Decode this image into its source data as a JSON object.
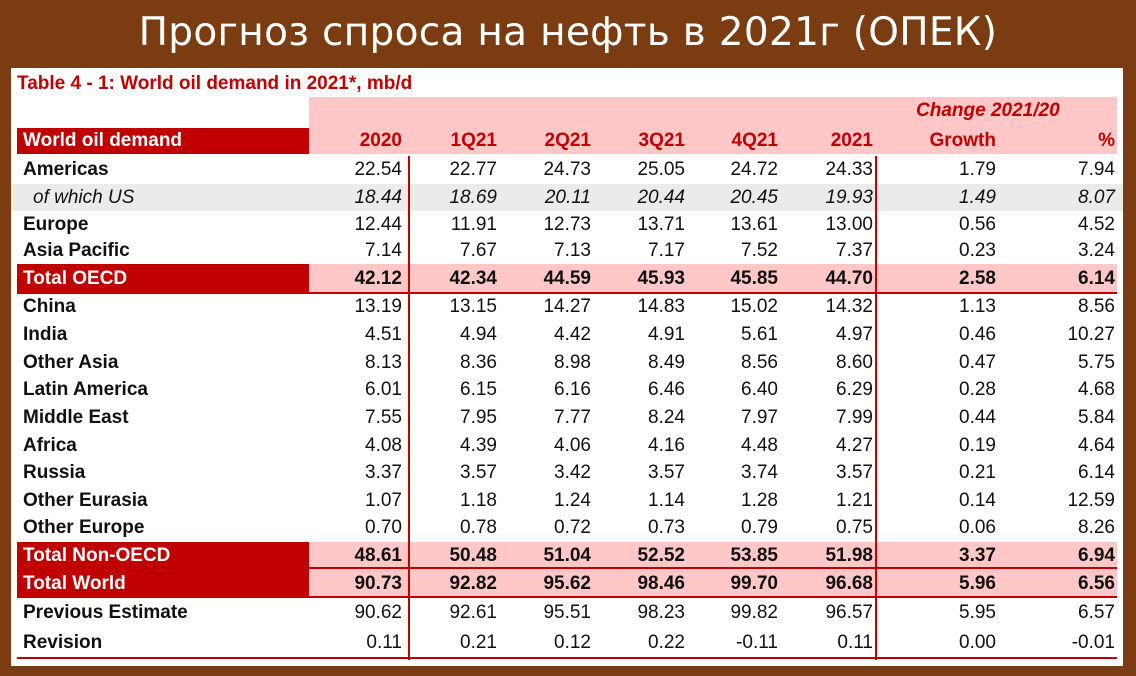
{
  "banner_title": "Прогноз спроса на нефть в 2021г (ОПЕК)",
  "table": {
    "caption": "Table 4 - 1: World oil demand in 2021*, mb/d",
    "row_header": "World oil demand",
    "change_header": "Change 2021/20",
    "columns": [
      "2020",
      "1Q21",
      "2Q21",
      "3Q21",
      "4Q21",
      "2021",
      "Growth",
      "%"
    ],
    "rows": [
      {
        "label": "Americas",
        "values": [
          "22.54",
          "22.77",
          "24.73",
          "25.05",
          "24.72",
          "24.33",
          "1.79",
          "7.94"
        ]
      },
      {
        "label": "of which US",
        "values": [
          "18.44",
          "18.69",
          "20.11",
          "20.44",
          "20.45",
          "19.93",
          "1.49",
          "8.07"
        ]
      },
      {
        "label": "Europe",
        "values": [
          "12.44",
          "11.91",
          "12.73",
          "13.71",
          "13.61",
          "13.00",
          "0.56",
          "4.52"
        ]
      },
      {
        "label": "Asia Pacific",
        "values": [
          "7.14",
          "7.67",
          "7.13",
          "7.17",
          "7.52",
          "7.37",
          "0.23",
          "3.24"
        ]
      },
      {
        "label": "Total OECD",
        "values": [
          "42.12",
          "42.34",
          "44.59",
          "45.93",
          "45.85",
          "44.70",
          "2.58",
          "6.14"
        ]
      },
      {
        "label": "China",
        "values": [
          "13.19",
          "13.15",
          "14.27",
          "14.83",
          "15.02",
          "14.32",
          "1.13",
          "8.56"
        ]
      },
      {
        "label": "India",
        "values": [
          "4.51",
          "4.94",
          "4.42",
          "4.91",
          "5.61",
          "4.97",
          "0.46",
          "10.27"
        ]
      },
      {
        "label": "Other Asia",
        "values": [
          "8.13",
          "8.36",
          "8.98",
          "8.49",
          "8.56",
          "8.60",
          "0.47",
          "5.75"
        ]
      },
      {
        "label": "Latin America",
        "values": [
          "6.01",
          "6.15",
          "6.16",
          "6.46",
          "6.40",
          "6.29",
          "0.28",
          "4.68"
        ]
      },
      {
        "label": "Middle East",
        "values": [
          "7.55",
          "7.95",
          "7.77",
          "8.24",
          "7.97",
          "7.99",
          "0.44",
          "5.84"
        ]
      },
      {
        "label": "Africa",
        "values": [
          "4.08",
          "4.39",
          "4.06",
          "4.16",
          "4.48",
          "4.27",
          "0.19",
          "4.64"
        ]
      },
      {
        "label": "Russia",
        "values": [
          "3.37",
          "3.57",
          "3.42",
          "3.57",
          "3.74",
          "3.57",
          "0.21",
          "6.14"
        ]
      },
      {
        "label": "Other Eurasia",
        "values": [
          "1.07",
          "1.18",
          "1.24",
          "1.14",
          "1.28",
          "1.21",
          "0.14",
          "12.59"
        ]
      },
      {
        "label": "Other Europe",
        "values": [
          "0.70",
          "0.78",
          "0.72",
          "0.73",
          "0.79",
          "0.75",
          "0.06",
          "8.26"
        ]
      },
      {
        "label": "Total Non-OECD",
        "values": [
          "48.61",
          "50.48",
          "51.04",
          "52.52",
          "53.85",
          "51.98",
          "3.37",
          "6.94"
        ]
      },
      {
        "label": "Total World",
        "values": [
          "90.73",
          "92.82",
          "95.62",
          "98.46",
          "99.70",
          "96.68",
          "5.96",
          "6.56"
        ]
      },
      {
        "label": "Previous Estimate",
        "values": [
          "90.62",
          "92.61",
          "95.51",
          "98.23",
          "99.82",
          "96.57",
          "5.95",
          "6.57"
        ]
      },
      {
        "label": "Revision",
        "values": [
          "0.11",
          "0.21",
          "0.12",
          "0.22",
          "-0.11",
          "0.11",
          "0.00",
          "-0.01"
        ]
      }
    ]
  },
  "colors": {
    "background": "#7a3c10",
    "accent_red": "#c00000",
    "light_pink": "#ffc7c7",
    "shade_grey": "#ebebeb"
  }
}
